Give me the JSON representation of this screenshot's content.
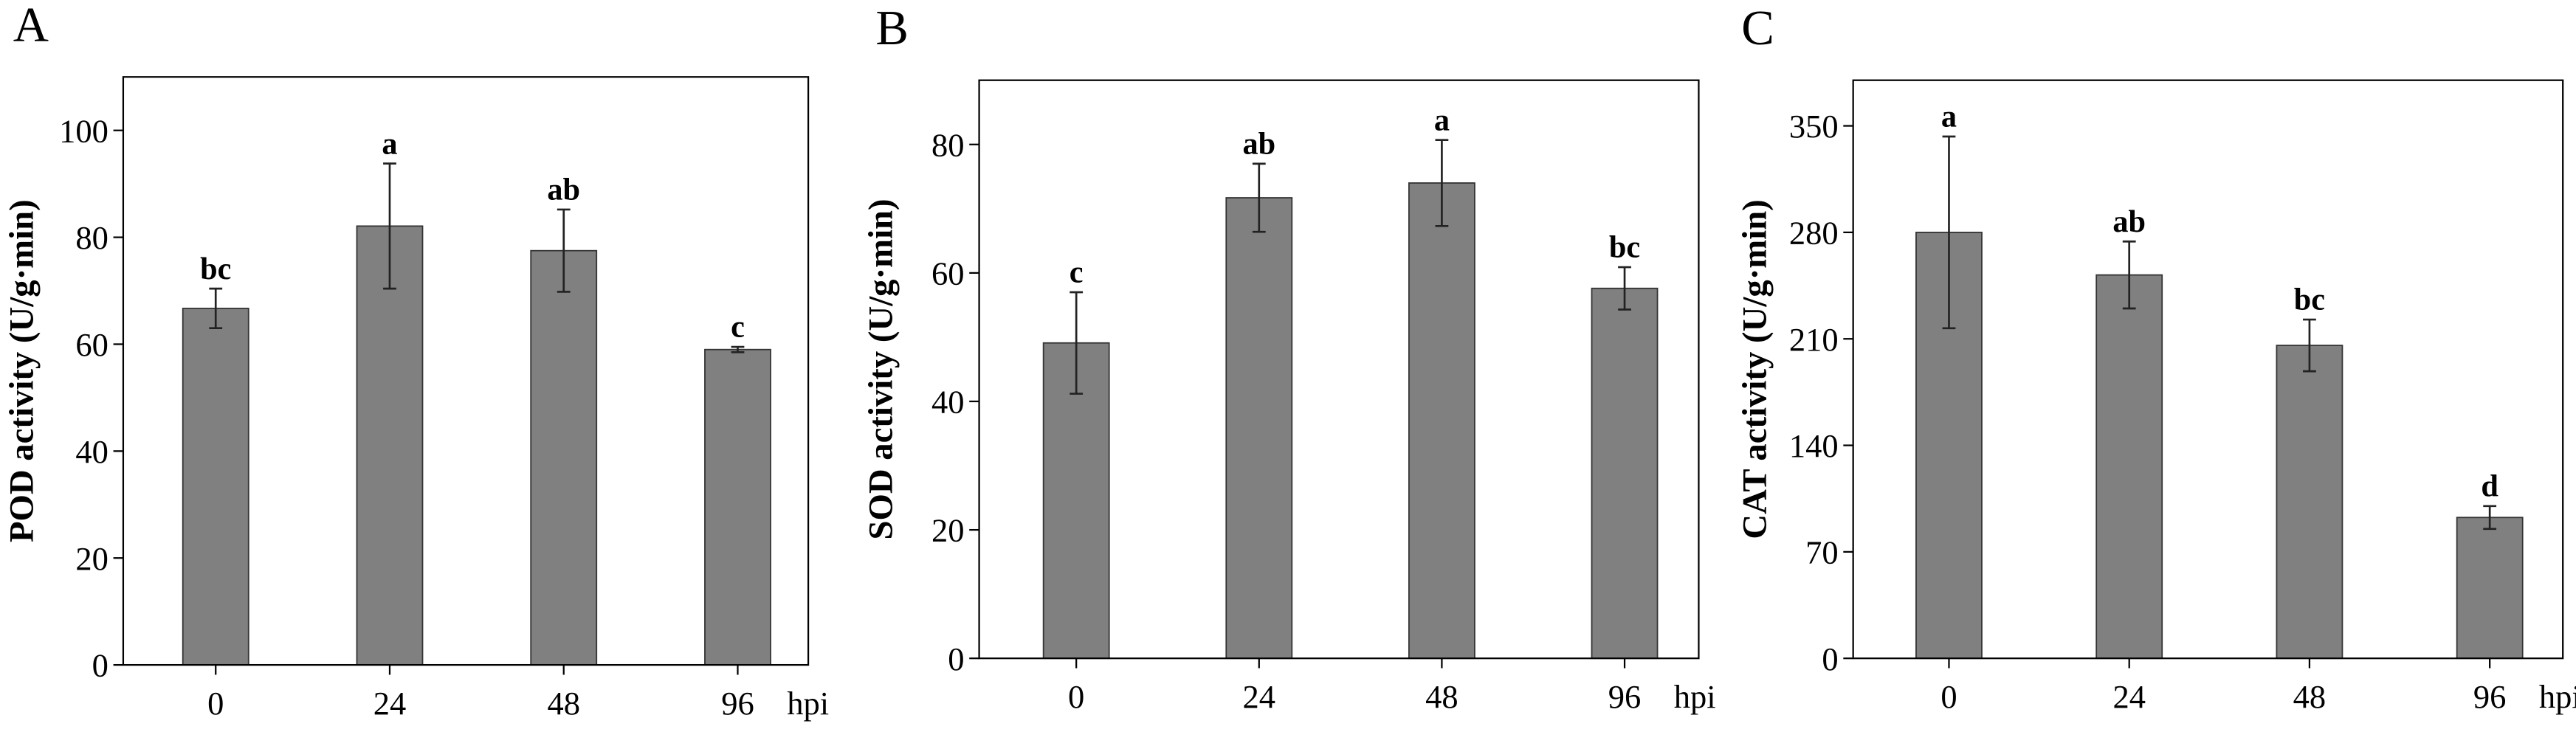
{
  "chart_data": [
    {
      "type": "bar",
      "panel_label": "A",
      "y_label": "POD activity (U/g·min)",
      "x_unit": "hpi",
      "categories": [
        "0",
        "24",
        "48",
        "96"
      ],
      "values": [
        66.7,
        82.1,
        77.5,
        59.0
      ],
      "errors": [
        3.7,
        11.7,
        7.7,
        0.5
      ],
      "annotations": [
        "bc",
        "a",
        "ab",
        "c"
      ],
      "color": "#808080",
      "ylim": [
        0,
        110
      ],
      "yticks": [
        0,
        20,
        40,
        60,
        80,
        100
      ]
    },
    {
      "type": "bar",
      "panel_label": "B",
      "y_label": "SOD activity (U/g·min)",
      "x_unit": "hpi",
      "categories": [
        "0",
        "24",
        "48",
        "96"
      ],
      "values": [
        49.1,
        71.7,
        74.0,
        57.6
      ],
      "errors": [
        7.9,
        5.3,
        6.7,
        3.3
      ],
      "annotations": [
        "c",
        "ab",
        "a",
        "bc"
      ],
      "color": "#808080",
      "ylim": [
        0,
        90
      ],
      "yticks": [
        0,
        20,
        40,
        60,
        80
      ]
    },
    {
      "type": "bar",
      "panel_label": "C",
      "y_label": "CAT activity (U/g·min)",
      "x_unit": "hpi",
      "categories": [
        "0",
        "24",
        "48",
        "96"
      ],
      "values": [
        280,
        252,
        205.7,
        92.6
      ],
      "errors": [
        63,
        22,
        17,
        7.5
      ],
      "annotations": [
        "a",
        "ab",
        "bc",
        "d"
      ],
      "color": "#808080",
      "ylim": [
        0,
        380
      ],
      "yticks": [
        0,
        70,
        140,
        210,
        280,
        350
      ]
    }
  ]
}
